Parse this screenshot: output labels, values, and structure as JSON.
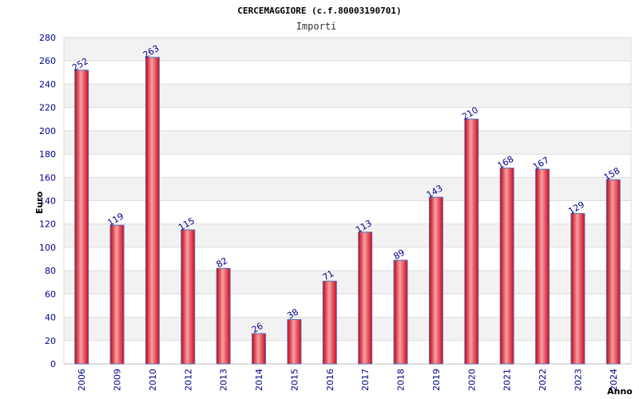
{
  "chart_data": {
    "type": "bar",
    "title": "CERCEMAGGIORE (c.f.80003190701)",
    "subtitle": "Importi",
    "xlabel": "Anno",
    "ylabel": "Euro",
    "ylim": [
      0,
      280
    ],
    "ytick_step": 20,
    "grid": true,
    "categories": [
      "2006",
      "2009",
      "2010",
      "2012",
      "2013",
      "2014",
      "2015",
      "2016",
      "2017",
      "2018",
      "2019",
      "2020",
      "2021",
      "2022",
      "2023",
      "2024"
    ],
    "values": [
      252,
      119,
      263,
      115,
      82,
      26,
      38,
      71,
      113,
      89,
      143,
      210,
      168,
      167,
      129,
      158
    ],
    "colors": {
      "bar": "#e0101e",
      "bar_highlight": "#f7a0a5",
      "bar_outline": "#5a6fb0",
      "band": "#f2f2f2",
      "grid": "#dcdcdc",
      "tick_text": "#00008b"
    }
  }
}
